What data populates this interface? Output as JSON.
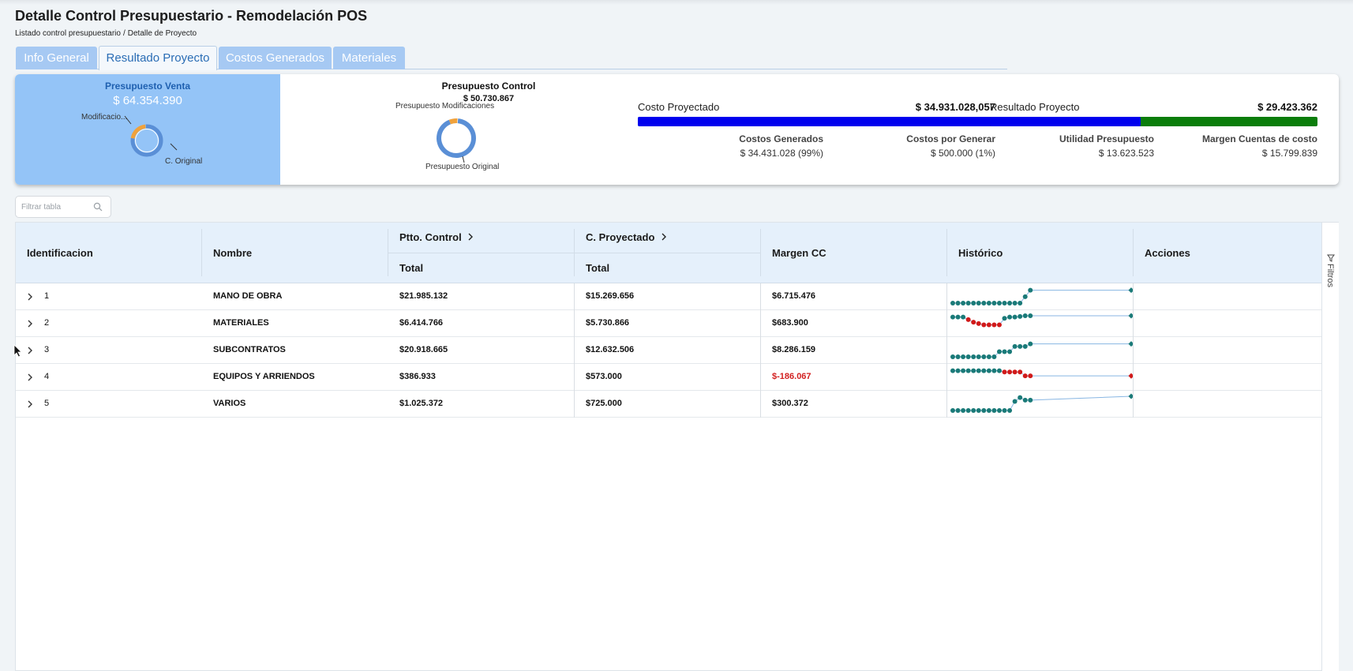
{
  "header": {
    "title": "Detalle Control Presupuestario - Remodelación POS",
    "breadcrumb": [
      "Listado control presupuestario",
      "Detalle de Proyecto"
    ],
    "breadcrumb_sep": "/"
  },
  "tabs": [
    {
      "label": "Info General",
      "active": false
    },
    {
      "label": "Resultado Proyecto",
      "active": true
    },
    {
      "label": "Costos Generados",
      "active": false
    },
    {
      "label": "Materiales",
      "active": false
    }
  ],
  "summary": {
    "venta": {
      "title": "Presupuesto Venta",
      "amount": "$ 64.354.390",
      "label_mod": "Modificacio...",
      "label_orig": "C. Original",
      "mod_fraction": 0.21
    },
    "control": {
      "title": "Presupuesto Control",
      "amount": "$ 50.730.867",
      "label_mod": "Presupuesto Modificaciones",
      "label_orig": "Presupuesto Original",
      "mod_fraction": 0.07
    },
    "costo": {
      "title": "Costo Proyectado",
      "amount": "$ 34.931.028,057",
      "generados_label": "Costos Generados",
      "generados_value": "$ 34.431.028 (99%)",
      "por_generar_label": "Costos por Generar",
      "por_generar_value": "$ 500.000 (1%)",
      "generated_fraction": 0.99
    },
    "resultado": {
      "title": "Resultado Proyecto",
      "amount": "$ 29.423.362",
      "utilidad_label": "Utilidad Presupuesto",
      "utilidad_value": "$ 13.623.523",
      "margen_label": "Margen Cuentas de costo",
      "margen_value": "$ 15.799.839",
      "utilidad_fraction": 0.46
    },
    "colors": {
      "venta_bg": "#94c4f7",
      "donut_main": "#5a8fd6",
      "donut_mod": "#f0a23c",
      "bar_blue": "#0000ee",
      "bar_cyan": "#33cccc",
      "bar_green": "#0a7d0a"
    }
  },
  "filter": {
    "placeholder": "Filtrar tabla",
    "icon": "search-icon"
  },
  "table": {
    "headers": {
      "id": "Identificacion",
      "nombre": "Nombre",
      "ptto_control": "Ptto. Control",
      "c_proyectado": "C. Proyectado",
      "total": "Total",
      "margen": "Margen CC",
      "historico": "Histórico",
      "acciones": "Acciones"
    },
    "side_label": "Filtros",
    "rows": [
      {
        "id": "1",
        "nombre": "MANO DE OBRA",
        "ptto": "$21.985.132",
        "proy": "$15.269.656",
        "margen": "$6.715.476",
        "negative": false
      },
      {
        "id": "2",
        "nombre": "MATERIALES",
        "ptto": "$6.414.766",
        "proy": "$5.730.866",
        "margen": "$683.900",
        "negative": false
      },
      {
        "id": "3",
        "nombre": "SUBCONTRATOS",
        "ptto": "$20.918.665",
        "proy": "$12.632.506",
        "margen": "$8.286.159",
        "negative": false
      },
      {
        "id": "4",
        "nombre": "EQUIPOS Y ARRIENDOS",
        "ptto": "$386.933",
        "proy": "$573.000",
        "margen": "$-186.067",
        "negative": true
      },
      {
        "id": "5",
        "nombre": "VARIOS",
        "ptto": "$1.025.372",
        "proy": "$725.000",
        "margen": "$300.372",
        "negative": false
      }
    ],
    "sparklines": [
      {
        "series": [
          0,
          0,
          0,
          0,
          0,
          0,
          0,
          0,
          0,
          0,
          0,
          0,
          0,
          0,
          0.5,
          1,
          1
        ],
        "down": []
      },
      {
        "series": [
          1,
          1,
          1,
          0.8,
          0.6,
          0.5,
          0.4,
          0.4,
          0.4,
          0.4,
          0.9,
          1,
          1,
          1.05,
          1.1,
          1.1,
          1.1
        ],
        "down": [
          3,
          4,
          5,
          6,
          7,
          8,
          9
        ]
      },
      {
        "series": [
          0,
          0,
          0,
          0,
          0,
          0,
          0,
          0,
          0,
          0.4,
          0.4,
          0.4,
          0.8,
          0.8,
          0.8,
          1,
          1
        ],
        "down": []
      },
      {
        "series": [
          1,
          1,
          1,
          1,
          1,
          1,
          1,
          1,
          1,
          1,
          0.9,
          0.9,
          0.9,
          0.9,
          0.6,
          0.6,
          0.6
        ],
        "down": [
          10,
          11,
          12,
          13,
          14,
          15,
          16
        ]
      },
      {
        "series": [
          0,
          0,
          0,
          0,
          0,
          0,
          0,
          0,
          0,
          0,
          0,
          0,
          0.7,
          1.0,
          0.8,
          0.8,
          1.1
        ],
        "down": []
      }
    ],
    "spark_colors": {
      "up": "#1a7a78",
      "down": "#d11a1a",
      "line": "#88b6e3"
    }
  }
}
